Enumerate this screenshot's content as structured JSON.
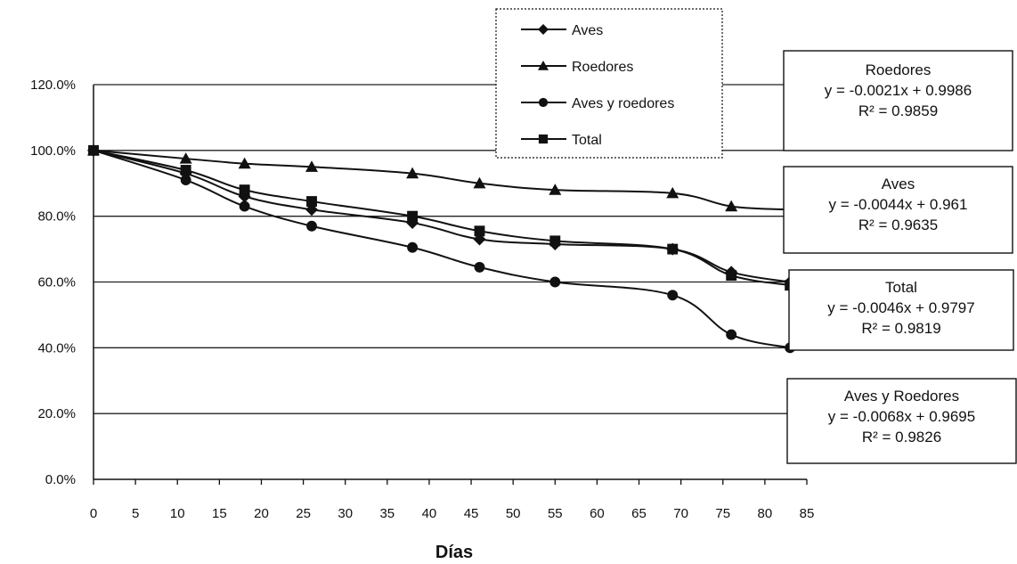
{
  "chart_data": {
    "type": "line",
    "xlabel": "Días",
    "ylabel": "",
    "xlim": [
      0,
      85
    ],
    "ylim": [
      0,
      120
    ],
    "x_ticks": [
      "0",
      "5",
      "10",
      "15",
      "20",
      "25",
      "30",
      "35",
      "40",
      "45",
      "50",
      "55",
      "60",
      "65",
      "70",
      "75",
      "80",
      "85"
    ],
    "y_ticks": [
      "0.0%",
      "20.0%",
      "40.0%",
      "60.0%",
      "80.0%",
      "100.0%",
      "120.0%"
    ],
    "grid": "horizontal",
    "legend_position": "top-center",
    "series": [
      {
        "name": "Aves",
        "marker": "diamond",
        "x": [
          0,
          11,
          18,
          26,
          38,
          46,
          55,
          69,
          76,
          83
        ],
        "y": [
          100,
          93,
          86,
          82,
          78,
          73,
          71.5,
          70,
          63,
          60
        ]
      },
      {
        "name": "Roedores",
        "marker": "triangle",
        "x": [
          0,
          11,
          18,
          26,
          38,
          46,
          55,
          69,
          76,
          83
        ],
        "y": [
          100,
          97.5,
          96,
          95,
          93,
          90,
          88,
          87,
          83,
          82
        ]
      },
      {
        "name": "Aves y roedores",
        "marker": "circle",
        "x": [
          0,
          11,
          18,
          26,
          38,
          46,
          55,
          69,
          76,
          83
        ],
        "y": [
          100,
          91,
          83,
          77,
          70.5,
          64.5,
          60,
          56,
          44,
          40
        ]
      },
      {
        "name": "Total",
        "marker": "square",
        "x": [
          0,
          11,
          18,
          26,
          38,
          46,
          55,
          69,
          76,
          83
        ],
        "y": [
          100,
          94,
          88,
          84.5,
          80,
          75.5,
          72.5,
          70,
          62,
          59
        ]
      }
    ],
    "annotations": [
      {
        "title": "Roedores",
        "equation": "y = -0.0021x + 0.9986",
        "r2": "R² = 0.9859"
      },
      {
        "title": "Aves",
        "equation": "y = -0.0044x + 0.961",
        "r2": "R² = 0.9635"
      },
      {
        "title": "Total",
        "equation": "y = -0.0046x + 0.9797",
        "r2": "R² = 0.9819"
      },
      {
        "title": "Aves y Roedores",
        "equation": "y = -0.0068x + 0.9695",
        "r2": "R² = 0.9826"
      }
    ],
    "colors": {
      "line": "#111111",
      "grid": "#222222",
      "background": "#ffffff"
    }
  }
}
